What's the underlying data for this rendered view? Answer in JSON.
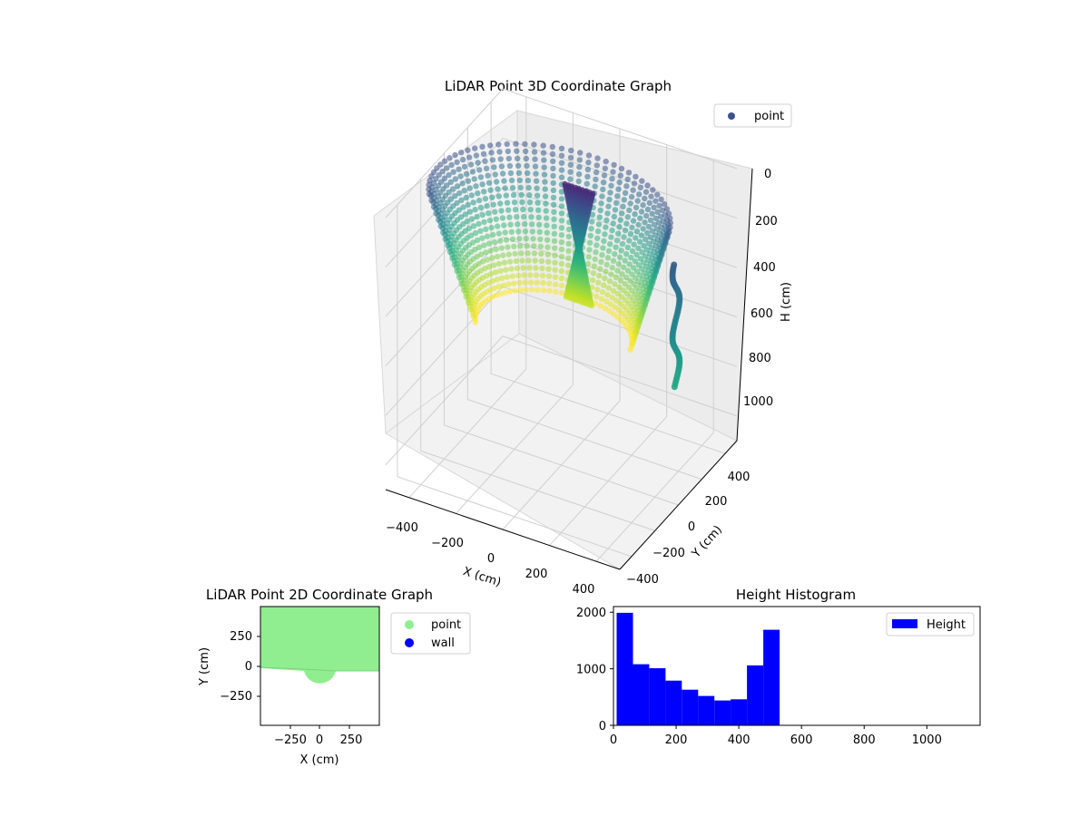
{
  "chart_data": [
    {
      "type": "scatter",
      "projection": "3d",
      "title": "LiDAR Point 3D Coordinate Graph",
      "xlabel": "X (cm)",
      "ylabel": "Y (cm)",
      "zlabel": "H (cm)",
      "xlim": [
        -500,
        500
      ],
      "ylim": [
        -500,
        500
      ],
      "zlim": [
        1100,
        0
      ],
      "x_ticks": [
        "−400",
        "−200",
        "0",
        "200",
        "400"
      ],
      "y_ticks": [
        "−400",
        "−200",
        "0",
        "200",
        "400"
      ],
      "z_ticks": [
        "0",
        "200",
        "400",
        "600",
        "800",
        "1000"
      ],
      "legend": [
        "point"
      ],
      "legend_position": "top-right",
      "colormap": "viridis",
      "series": [
        {
          "name": "point",
          "color": "#3b528b",
          "description_rings": [
            {
              "radius": 480,
              "height_range": [
                0,
                520
              ],
              "y_min": -100
            }
          ],
          "column": {
            "x": 0,
            "y": 150,
            "h_range": [
              60,
              520
            ]
          },
          "wall_trace": {
            "x": 470,
            "y": 0,
            "h_range": [
              150,
              650
            ]
          }
        }
      ],
      "grid": true
    },
    {
      "type": "scatter",
      "title": "LiDAR Point 2D Coordinate Graph",
      "xlabel": "X (cm)",
      "ylabel": "Y (cm)",
      "xlim": [
        -500,
        500
      ],
      "ylim": [
        -500,
        500
      ],
      "x_ticks": [
        "−250",
        "0",
        "250"
      ],
      "y_ticks": [
        "250",
        "0",
        "−250"
      ],
      "legend": [
        "point",
        "wall"
      ],
      "legend_position": "outside-right",
      "series": [
        {
          "name": "point",
          "color": "#90ee90",
          "region": "upper half-plane y > -40 plus semicircle r=120 below origin"
        },
        {
          "name": "wall",
          "color": "#0000ff"
        }
      ]
    },
    {
      "type": "bar",
      "title": "Height Histogram",
      "xlim": [
        0,
        1170
      ],
      "ylim": [
        0,
        2100
      ],
      "x_ticks": [
        "0",
        "200",
        "400",
        "600",
        "800",
        "1000"
      ],
      "y_ticks": [
        "0",
        "1000",
        "2000"
      ],
      "legend": [
        "Height"
      ],
      "legend_position": "top-right",
      "bin_width": 52,
      "bins": [
        0,
        52,
        104,
        156,
        208,
        260,
        312,
        364,
        416,
        468
      ],
      "series": [
        {
          "name": "Height",
          "color": "#0000ff",
          "values": [
            1990,
            1080,
            1010,
            790,
            630,
            520,
            440,
            460,
            1060,
            1690
          ]
        }
      ]
    }
  ]
}
